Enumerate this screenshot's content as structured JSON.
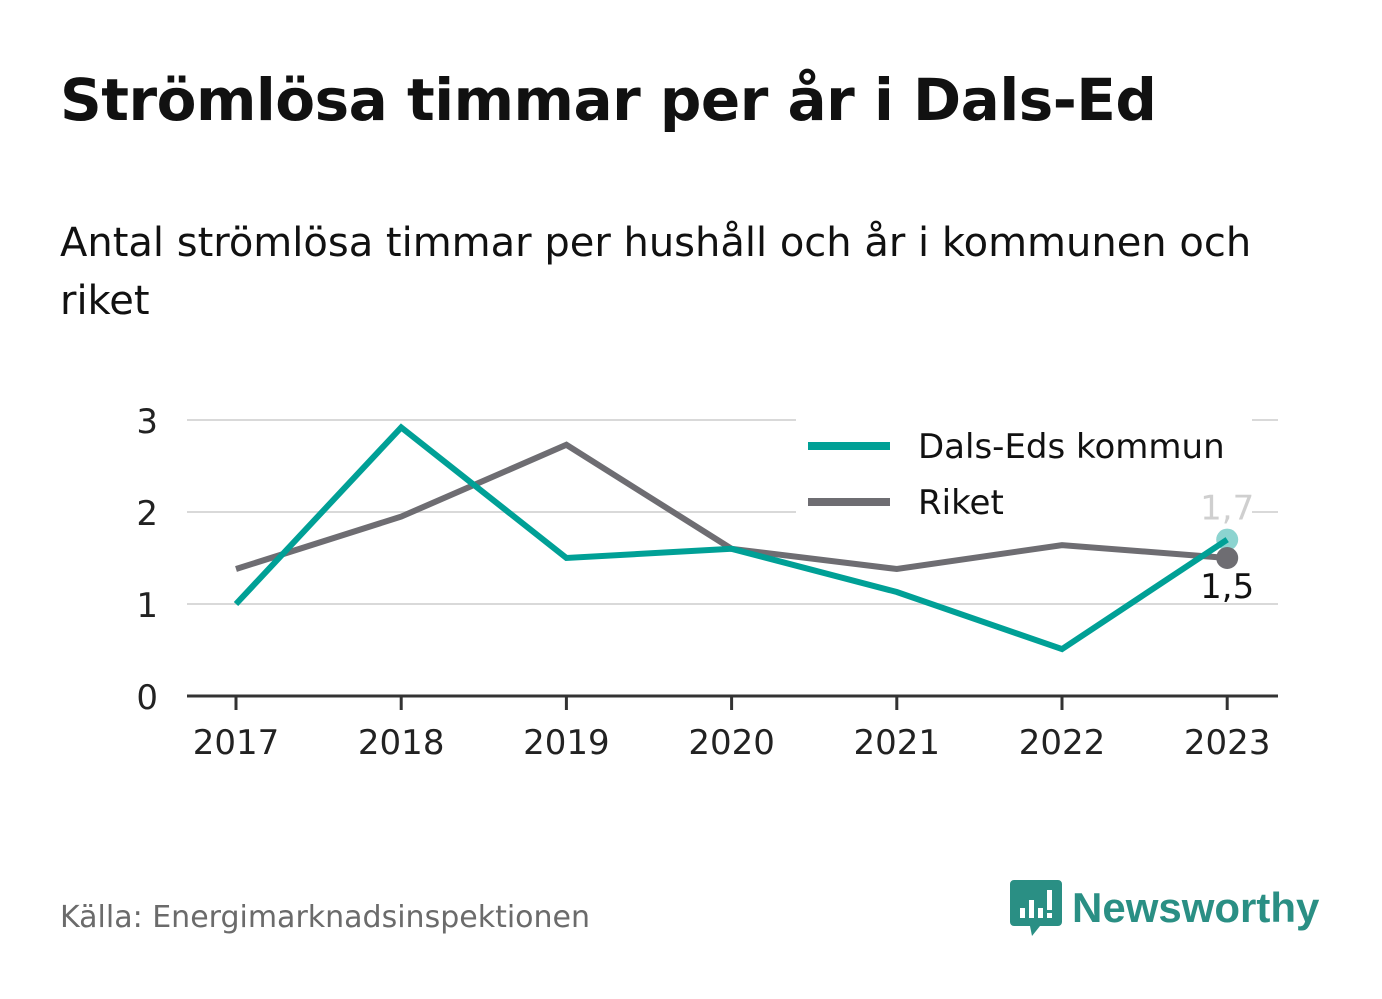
{
  "title": "Strömlösa timmar per år i Dals-Ed",
  "subtitle": "Antal strömlösa timmar per hushåll och år i kommunen och riket",
  "source": "Källa: Energimarknadsinspektionen",
  "brand": {
    "name": "Newsworthy",
    "icon": "newsworthy-logo-icon",
    "color": "#2a8f84"
  },
  "chart_data": {
    "type": "line",
    "x": [
      "2017",
      "2018",
      "2019",
      "2020",
      "2021",
      "2022",
      "2023"
    ],
    "ylim": [
      0,
      3
    ],
    "yticks": [
      "0",
      "1",
      "2",
      "3"
    ],
    "grid": true,
    "legend": "top-right",
    "series": [
      {
        "name": "Dals-Eds kommun",
        "color": "#00a096",
        "values": [
          1.0,
          2.92,
          1.5,
          1.6,
          1.13,
          0.51,
          1.7
        ],
        "end_label": "1,7"
      },
      {
        "name": "Riket",
        "color": "#6e6d72",
        "values": [
          1.38,
          1.95,
          2.73,
          1.6,
          1.38,
          1.64,
          1.5
        ],
        "end_label": "1,5"
      }
    ]
  }
}
